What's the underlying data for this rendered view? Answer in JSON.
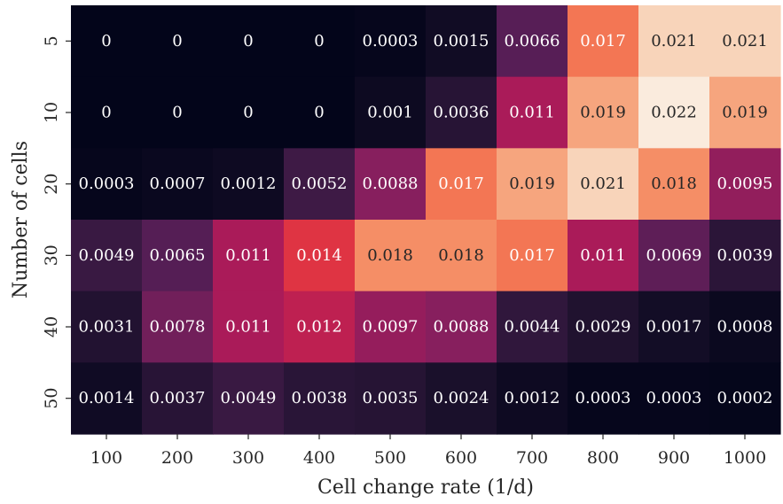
{
  "chart_data": {
    "type": "heatmap",
    "title": "",
    "xlabel": "Cell change rate (1/d)",
    "ylabel": "Number of cells",
    "x_categories": [
      "100",
      "200",
      "300",
      "400",
      "500",
      "600",
      "700",
      "800",
      "900",
      "1000"
    ],
    "y_categories": [
      "5",
      "10",
      "20",
      "30",
      "40",
      "50"
    ],
    "values": [
      [
        0,
        0,
        0,
        0,
        0.0003,
        0.0015,
        0.0066,
        0.017,
        0.021,
        0.021
      ],
      [
        0,
        0,
        0,
        0,
        0.001,
        0.0036,
        0.011,
        0.019,
        0.022,
        0.019
      ],
      [
        0.0003,
        0.0007,
        0.0012,
        0.0052,
        0.0088,
        0.017,
        0.019,
        0.021,
        0.018,
        0.0095
      ],
      [
        0.0049,
        0.0065,
        0.011,
        0.014,
        0.018,
        0.018,
        0.017,
        0.011,
        0.0069,
        0.0039
      ],
      [
        0.0031,
        0.0078,
        0.011,
        0.012,
        0.0097,
        0.0088,
        0.0044,
        0.0029,
        0.0017,
        0.0008
      ],
      [
        0.0014,
        0.0037,
        0.0049,
        0.0038,
        0.0035,
        0.0024,
        0.0012,
        0.0003,
        0.0003,
        0.0002
      ]
    ],
    "labels": [
      [
        "0",
        "0",
        "0",
        "0",
        "0.0003",
        "0.0015",
        "0.0066",
        "0.017",
        "0.021",
        "0.021"
      ],
      [
        "0",
        "0",
        "0",
        "0",
        "0.001",
        "0.0036",
        "0.011",
        "0.019",
        "0.022",
        "0.019"
      ],
      [
        "0.0003",
        "0.0007",
        "0.0012",
        "0.0052",
        "0.0088",
        "0.017",
        "0.019",
        "0.021",
        "0.018",
        "0.0095"
      ],
      [
        "0.0049",
        "0.0065",
        "0.011",
        "0.014",
        "0.018",
        "0.018",
        "0.017",
        "0.011",
        "0.0069",
        "0.0039"
      ],
      [
        "0.0031",
        "0.0078",
        "0.011",
        "0.012",
        "0.0097",
        "0.0088",
        "0.0044",
        "0.0029",
        "0.0017",
        "0.0008"
      ],
      [
        "0.0014",
        "0.0037",
        "0.0049",
        "0.0038",
        "0.0035",
        "0.0024",
        "0.0012",
        "0.0003",
        "0.0003",
        "0.0002"
      ]
    ],
    "color_range": [
      0,
      0.022
    ],
    "colormap": "rocket",
    "grid": false,
    "legend": "none"
  }
}
